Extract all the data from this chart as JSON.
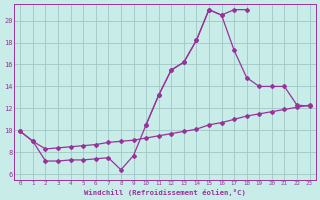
{
  "bg_color": "#c8ece8",
  "grid_color": "#a0c8c4",
  "line_color": "#993399",
  "xlabel": "Windchill (Refroidissement éolien,°C)",
  "xlim_min": -0.5,
  "xlim_max": 23.5,
  "ylim_min": 5.5,
  "ylim_max": 21.5,
  "yticks": [
    6,
    8,
    10,
    12,
    14,
    16,
    18,
    20
  ],
  "xticks": [
    0,
    1,
    2,
    3,
    4,
    5,
    6,
    7,
    8,
    9,
    10,
    11,
    12,
    13,
    14,
    15,
    16,
    17,
    18,
    19,
    20,
    21,
    22,
    23
  ],
  "line1_x": [
    0,
    1,
    2,
    3,
    4,
    5,
    6,
    7,
    8,
    9,
    10,
    11,
    12,
    13,
    14,
    15,
    16,
    17,
    18
  ],
  "line1_y": [
    9.9,
    9.0,
    7.2,
    7.2,
    7.3,
    7.3,
    7.4,
    7.5,
    6.4,
    7.7,
    10.5,
    13.2,
    15.5,
    16.2,
    18.2,
    21.0,
    20.5,
    21.0,
    21.0
  ],
  "line2_x": [
    0,
    1,
    2,
    3,
    4,
    5,
    6,
    7,
    8,
    9,
    10,
    11,
    12,
    13,
    14,
    15,
    16,
    17,
    18,
    19,
    20,
    21,
    22,
    23
  ],
  "line2_y": [
    9.9,
    9.0,
    8.3,
    8.4,
    8.5,
    8.6,
    8.7,
    8.9,
    9.0,
    9.1,
    9.3,
    9.5,
    9.7,
    9.9,
    10.1,
    10.5,
    10.7,
    11.0,
    11.3,
    11.5,
    11.7,
    11.9,
    12.1,
    12.3
  ],
  "line3_x": [
    10,
    11,
    12,
    13,
    14,
    15,
    16,
    17,
    18,
    19,
    20,
    21,
    22,
    23
  ],
  "line3_y": [
    10.5,
    13.2,
    15.5,
    16.2,
    18.2,
    21.0,
    20.5,
    17.3,
    14.8,
    14.0,
    14.0,
    14.0,
    12.3,
    12.2
  ]
}
